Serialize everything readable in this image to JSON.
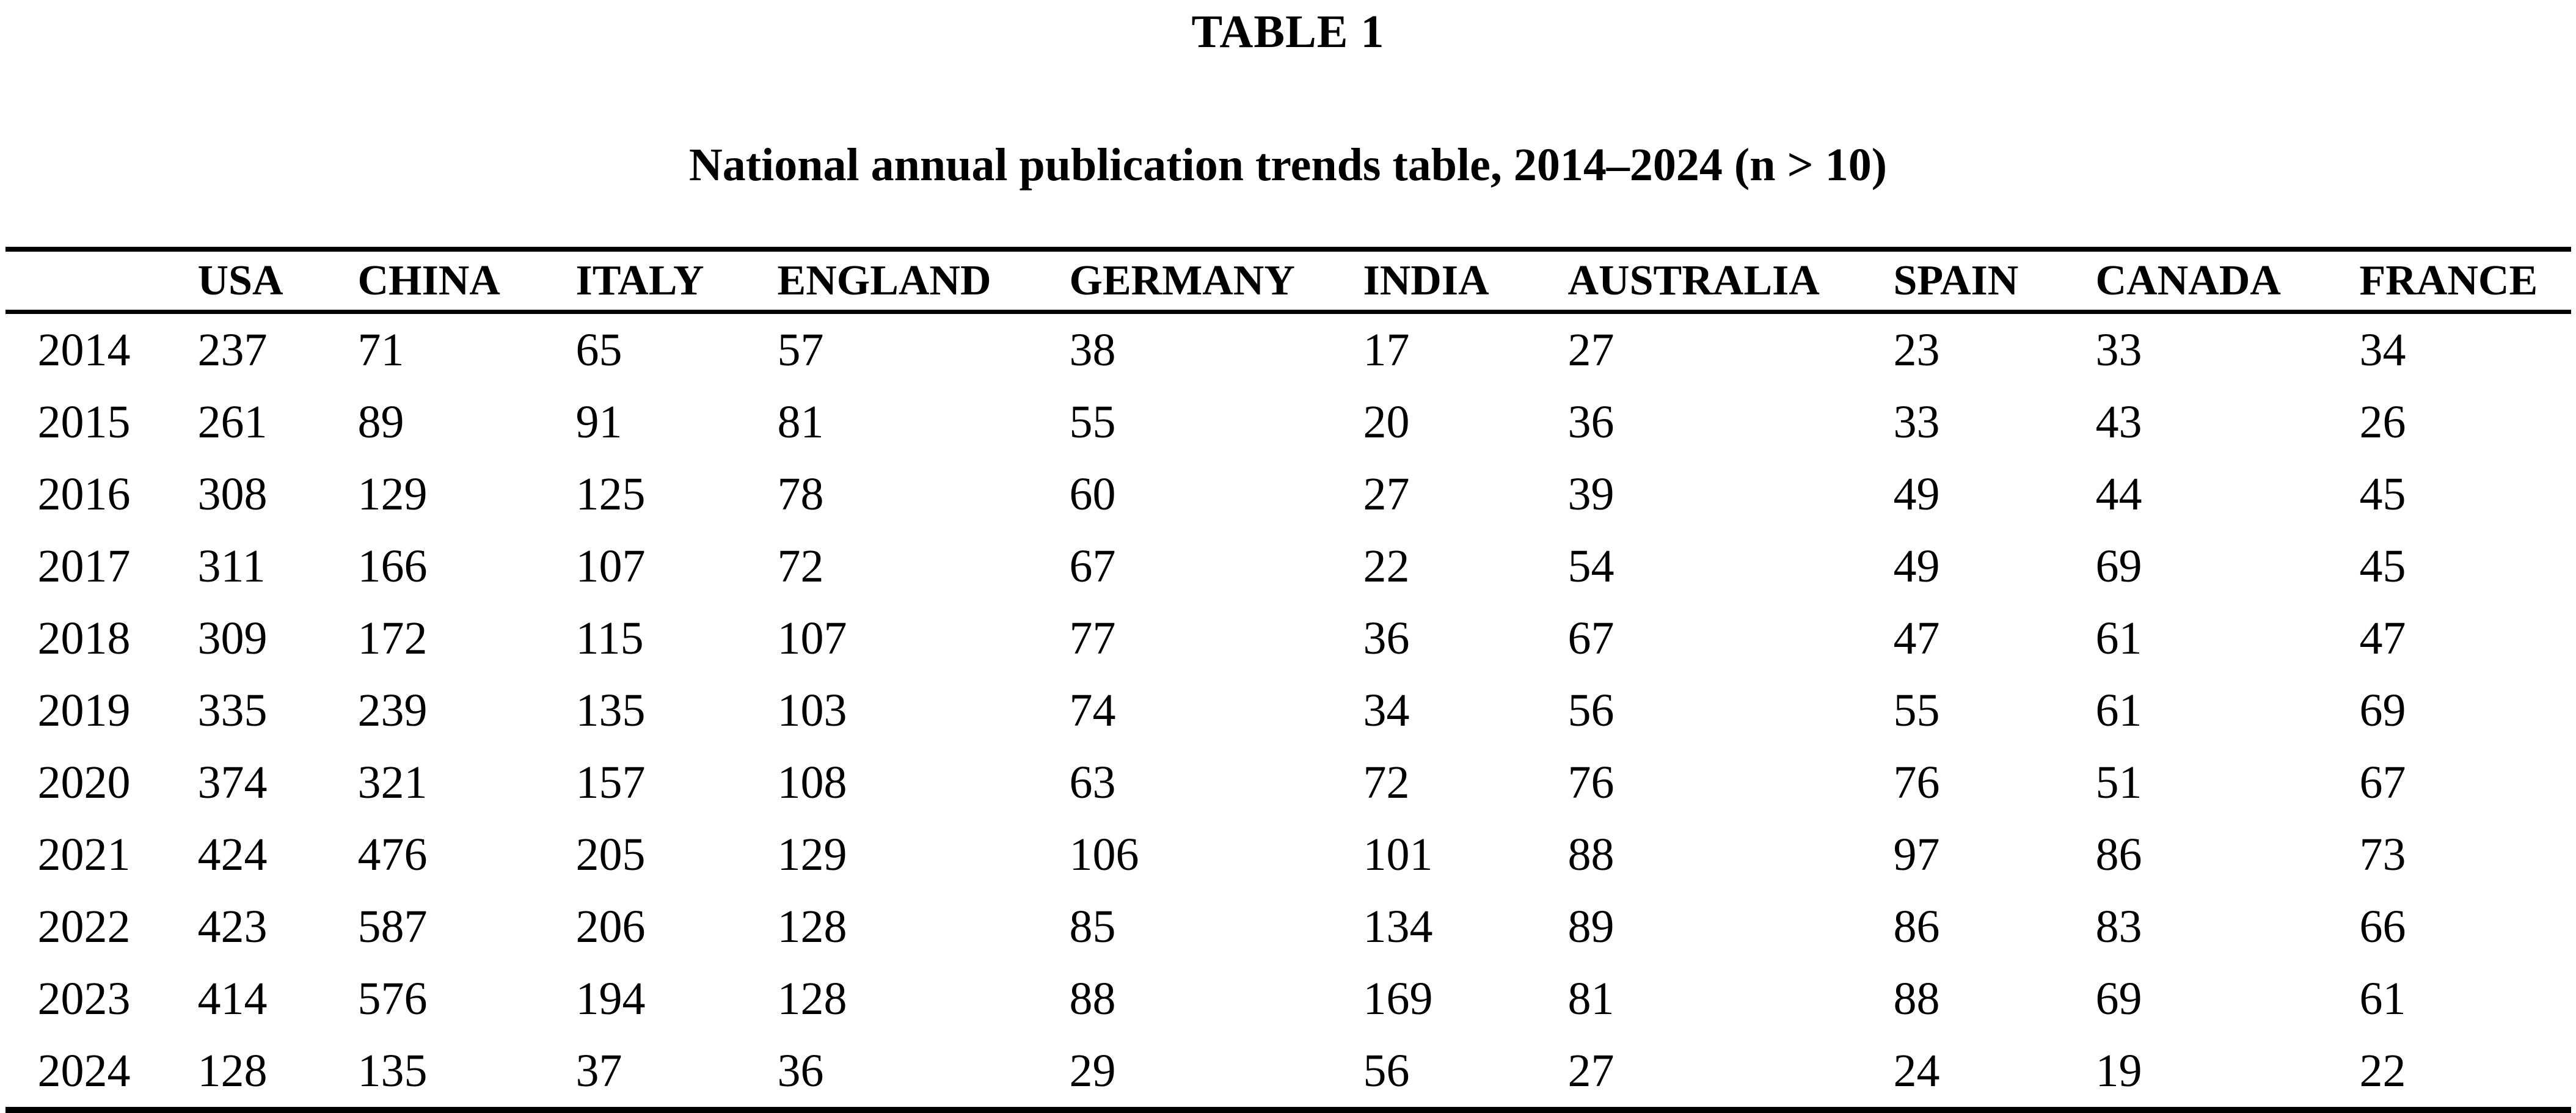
{
  "table": {
    "label": "TABLE 1",
    "caption": "National annual publication trends table, 2014–2024 (n > 10)",
    "columns": [
      "",
      "USA",
      "CHINA",
      "ITALY",
      "ENGLAND",
      "GERMANY",
      "INDIA",
      "AUSTRALIA",
      "SPAIN",
      "CANADA",
      "FRANCE"
    ],
    "rows": [
      {
        "year": "2014",
        "values": [
          237,
          71,
          65,
          57,
          38,
          17,
          27,
          23,
          33,
          34
        ]
      },
      {
        "year": "2015",
        "values": [
          261,
          89,
          91,
          81,
          55,
          20,
          36,
          33,
          43,
          26
        ]
      },
      {
        "year": "2016",
        "values": [
          308,
          129,
          125,
          78,
          60,
          27,
          39,
          49,
          44,
          45
        ]
      },
      {
        "year": "2017",
        "values": [
          311,
          166,
          107,
          72,
          67,
          22,
          54,
          49,
          69,
          45
        ]
      },
      {
        "year": "2018",
        "values": [
          309,
          172,
          115,
          107,
          77,
          36,
          67,
          47,
          61,
          47
        ]
      },
      {
        "year": "2019",
        "values": [
          335,
          239,
          135,
          103,
          74,
          34,
          56,
          55,
          61,
          69
        ]
      },
      {
        "year": "2020",
        "values": [
          374,
          321,
          157,
          108,
          63,
          72,
          76,
          76,
          51,
          67
        ]
      },
      {
        "year": "2021",
        "values": [
          424,
          476,
          205,
          129,
          106,
          101,
          88,
          97,
          86,
          73
        ]
      },
      {
        "year": "2022",
        "values": [
          423,
          587,
          206,
          128,
          85,
          134,
          89,
          86,
          83,
          66
        ]
      },
      {
        "year": "2023",
        "values": [
          414,
          576,
          194,
          128,
          88,
          169,
          81,
          88,
          69,
          61
        ]
      },
      {
        "year": "2024",
        "values": [
          128,
          135,
          37,
          36,
          29,
          56,
          27,
          24,
          19,
          22
        ]
      }
    ],
    "text_color": "#000000",
    "background_color": "#ffffff"
  },
  "chart_data": {
    "type": "table",
    "title": "TABLE 1",
    "subtitle": "National annual publication trends table, 2014–2024 (n > 10)",
    "x": [
      2014,
      2015,
      2016,
      2017,
      2018,
      2019,
      2020,
      2021,
      2022,
      2023,
      2024
    ],
    "series": [
      {
        "name": "USA",
        "values": [
          237,
          261,
          308,
          311,
          309,
          335,
          374,
          424,
          423,
          414,
          128
        ]
      },
      {
        "name": "CHINA",
        "values": [
          71,
          89,
          129,
          166,
          172,
          239,
          321,
          476,
          587,
          576,
          135
        ]
      },
      {
        "name": "ITALY",
        "values": [
          65,
          91,
          125,
          107,
          115,
          135,
          157,
          205,
          206,
          194,
          37
        ]
      },
      {
        "name": "ENGLAND",
        "values": [
          57,
          81,
          78,
          72,
          107,
          103,
          108,
          129,
          128,
          128,
          36
        ]
      },
      {
        "name": "GERMANY",
        "values": [
          38,
          55,
          60,
          67,
          77,
          74,
          63,
          106,
          85,
          88,
          29
        ]
      },
      {
        "name": "INDIA",
        "values": [
          17,
          20,
          27,
          22,
          36,
          34,
          72,
          101,
          134,
          169,
          56
        ]
      },
      {
        "name": "AUSTRALIA",
        "values": [
          27,
          36,
          39,
          54,
          67,
          56,
          76,
          88,
          89,
          81,
          27
        ]
      },
      {
        "name": "SPAIN",
        "values": [
          23,
          33,
          49,
          49,
          47,
          55,
          76,
          97,
          86,
          88,
          24
        ]
      },
      {
        "name": "CANADA",
        "values": [
          33,
          43,
          44,
          69,
          61,
          61,
          51,
          86,
          83,
          69,
          19
        ]
      },
      {
        "name": "FRANCE",
        "values": [
          34,
          26,
          45,
          45,
          47,
          69,
          67,
          73,
          66,
          61,
          22
        ]
      }
    ]
  }
}
